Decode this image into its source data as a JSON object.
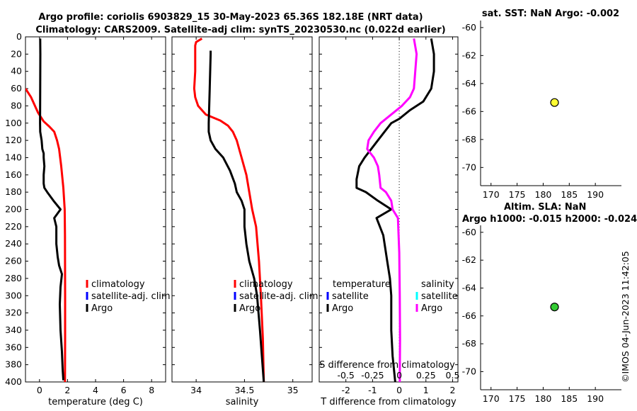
{
  "header": {
    "title1": "Argo profile: coriolis 6903829_15 30-May-2023 65.36S 182.18E (NRT data)",
    "title2": "Climatology: CARS2009. Satellite-adj clim: synTS_20230530.nc (0.022d earlier)"
  },
  "sidebar": {
    "sst_title": "sat. SST: NaN Argo: -0.002",
    "sla_title1": "Altim. SLA: NaN",
    "sla_title2": "Argo h1000: -0.015 h2000: -0.024",
    "timestamp": "©IMOS 04-Jun-2023 11:42:05"
  },
  "colors": {
    "climatology": "#ff0000",
    "satellite_adj": "#0000ff",
    "argo": "#000000",
    "argo_s": "#ff00ff",
    "satellite_s": "#00ffff",
    "sst_marker": "#ffff33",
    "sla_marker": "#33cc33"
  },
  "chart_data": [
    {
      "type": "line",
      "name": "temperature",
      "xlabel": "temperature (deg C)",
      "xlim": [
        -1,
        9
      ],
      "xticks": [
        0,
        2,
        4,
        6,
        8
      ],
      "ylim": [
        0,
        400
      ],
      "yticks": [
        0,
        20,
        40,
        60,
        80,
        100,
        120,
        140,
        160,
        180,
        200,
        220,
        240,
        260,
        280,
        300,
        320,
        340,
        360,
        380,
        400
      ],
      "legend": [
        "climatology",
        "satellite-adj. clim",
        "Argo"
      ],
      "series": [
        {
          "name": "climatology",
          "points": [
            [
              -1,
              60
            ],
            [
              -0.6,
              70
            ],
            [
              -0.1,
              88
            ],
            [
              0.3,
              98
            ],
            [
              0.7,
              104
            ],
            [
              1.05,
              110
            ],
            [
              1.25,
              120
            ],
            [
              1.4,
              130
            ],
            [
              1.55,
              150
            ],
            [
              1.7,
              175
            ],
            [
              1.8,
              200
            ],
            [
              1.82,
              230
            ],
            [
              1.83,
              300
            ],
            [
              1.83,
              350
            ],
            [
              1.82,
              400
            ]
          ]
        },
        {
          "name": "Argo",
          "points": [
            [
              0.05,
              2
            ],
            [
              0.06,
              20
            ],
            [
              0.05,
              60
            ],
            [
              0.04,
              100
            ],
            [
              0.05,
              110
            ],
            [
              0.15,
              120
            ],
            [
              0.2,
              130
            ],
            [
              0.3,
              135
            ],
            [
              0.3,
              140
            ],
            [
              0.35,
              150
            ],
            [
              0.3,
              160
            ],
            [
              0.3,
              170
            ],
            [
              0.35,
              175
            ],
            [
              0.55,
              180
            ],
            [
              1.0,
              190
            ],
            [
              1.5,
              200
            ],
            [
              1.05,
              210
            ],
            [
              1.2,
              220
            ],
            [
              1.2,
              240
            ],
            [
              1.3,
              255
            ],
            [
              1.4,
              265
            ],
            [
              1.6,
              275
            ],
            [
              1.5,
              290
            ],
            [
              1.45,
              310
            ],
            [
              1.5,
              340
            ],
            [
              1.6,
              365
            ],
            [
              1.65,
              385
            ],
            [
              1.7,
              398
            ]
          ]
        }
      ]
    },
    {
      "type": "line",
      "name": "salinity",
      "xlabel": "salinity",
      "xlim": [
        33.75,
        35.2
      ],
      "xticks": [
        34,
        34.5,
        35
      ],
      "ylim": [
        0,
        400
      ],
      "legend": [
        "climatology",
        "satellite-adj. clim",
        "Argo"
      ],
      "series": [
        {
          "name": "climatology",
          "points": [
            [
              34.06,
              2
            ],
            [
              34.0,
              6
            ],
            [
              33.99,
              10
            ],
            [
              33.99,
              40
            ],
            [
              33.98,
              60
            ],
            [
              33.99,
              70
            ],
            [
              34.02,
              80
            ],
            [
              34.1,
              90
            ],
            [
              34.25,
              97
            ],
            [
              34.33,
              103
            ],
            [
              34.38,
              110
            ],
            [
              34.42,
              120
            ],
            [
              34.47,
              140
            ],
            [
              34.52,
              160
            ],
            [
              34.55,
              180
            ],
            [
              34.58,
              200
            ],
            [
              34.62,
              220
            ],
            [
              34.65,
              260
            ],
            [
              34.67,
              300
            ],
            [
              34.69,
              350
            ],
            [
              34.7,
              400
            ]
          ]
        },
        {
          "name": "Argo",
          "points": [
            [
              34.15,
              16
            ],
            [
              34.15,
              20
            ],
            [
              34.14,
              60
            ],
            [
              34.13,
              100
            ],
            [
              34.13,
              110
            ],
            [
              34.15,
              120
            ],
            [
              34.2,
              130
            ],
            [
              34.28,
              140
            ],
            [
              34.35,
              155
            ],
            [
              34.4,
              170
            ],
            [
              34.42,
              180
            ],
            [
              34.47,
              190
            ],
            [
              34.5,
              200
            ],
            [
              34.5,
              220
            ],
            [
              34.52,
              240
            ],
            [
              34.55,
              260
            ],
            [
              34.6,
              280
            ],
            [
              34.63,
              300
            ],
            [
              34.66,
              340
            ],
            [
              34.68,
              370
            ],
            [
              34.7,
              400
            ]
          ]
        }
      ]
    },
    {
      "type": "line",
      "name": "difference",
      "xlabel": "T difference from climatology",
      "xlim": [
        -3,
        2.2
      ],
      "xticks": [
        -2,
        -1,
        0,
        1,
        2
      ],
      "x2label": "S difference from climatology",
      "x2ticks": [
        -0.5,
        -0.25,
        0,
        0.25,
        0.5
      ],
      "x2scale": 4,
      "ylim": [
        0,
        400
      ],
      "legend_t": [
        "temperature",
        "satellite",
        "Argo"
      ],
      "legend_s": [
        "salinity",
        "satellite",
        "Argo"
      ],
      "series": [
        {
          "name": "T Argo",
          "points": [
            [
              1.2,
              2
            ],
            [
              1.3,
              20
            ],
            [
              1.3,
              40
            ],
            [
              1.2,
              60
            ],
            [
              0.9,
              75
            ],
            [
              0.4,
              85
            ],
            [
              0.0,
              95
            ],
            [
              -0.3,
              100
            ],
            [
              -0.55,
              110
            ],
            [
              -0.8,
              120
            ],
            [
              -1.05,
              130
            ],
            [
              -1.3,
              140
            ],
            [
              -1.5,
              150
            ],
            [
              -1.6,
              165
            ],
            [
              -1.6,
              175
            ],
            [
              -1.25,
              180
            ],
            [
              -0.8,
              190
            ],
            [
              -0.3,
              200
            ],
            [
              -0.85,
              210
            ],
            [
              -0.6,
              230
            ],
            [
              -0.45,
              260
            ],
            [
              -0.35,
              280
            ],
            [
              -0.3,
              300
            ],
            [
              -0.3,
              340
            ],
            [
              -0.25,
              370
            ],
            [
              -0.15,
              400
            ]
          ]
        },
        {
          "name": "S Argo",
          "points": [
            [
              0.55,
              2
            ],
            [
              0.65,
              20
            ],
            [
              0.6,
              40
            ],
            [
              0.55,
              60
            ],
            [
              0.4,
              70
            ],
            [
              0.1,
              80
            ],
            [
              -0.3,
              90
            ],
            [
              -0.7,
              100
            ],
            [
              -0.95,
              110
            ],
            [
              -1.15,
              120
            ],
            [
              -1.2,
              130
            ],
            [
              -0.95,
              140
            ],
            [
              -0.8,
              150
            ],
            [
              -0.75,
              160
            ],
            [
              -0.7,
              175
            ],
            [
              -0.5,
              180
            ],
            [
              -0.3,
              190
            ],
            [
              -0.25,
              200
            ],
            [
              -0.05,
              210
            ],
            [
              0.0,
              250
            ],
            [
              0.02,
              300
            ],
            [
              0.03,
              350
            ],
            [
              0.02,
              400
            ]
          ]
        }
      ]
    },
    {
      "type": "scatter",
      "name": "sst_map",
      "title": "sat. SST: NaN Argo: -0.002",
      "xlim": [
        168,
        195
      ],
      "ylim": [
        -71.3,
        -59.5
      ],
      "xticks": [
        170,
        175,
        180,
        185,
        190
      ],
      "yticks": [
        -60,
        -62,
        -64,
        -66,
        -68,
        -70
      ],
      "points": [
        {
          "x": 182.18,
          "y": -65.36,
          "color": "#ffff33"
        }
      ]
    },
    {
      "type": "scatter",
      "name": "sla_map",
      "title": "Altim. SLA: NaN / Argo h1000: -0.015 h2000: -0.024",
      "xlim": [
        168,
        195
      ],
      "ylim": [
        -71.3,
        -59.5
      ],
      "xticks": [
        170,
        175,
        180,
        185,
        190
      ],
      "yticks": [
        -60,
        -62,
        -64,
        -66,
        -68,
        -70
      ],
      "points": [
        {
          "x": 182.18,
          "y": -65.36,
          "color": "#33cc33"
        }
      ]
    }
  ]
}
